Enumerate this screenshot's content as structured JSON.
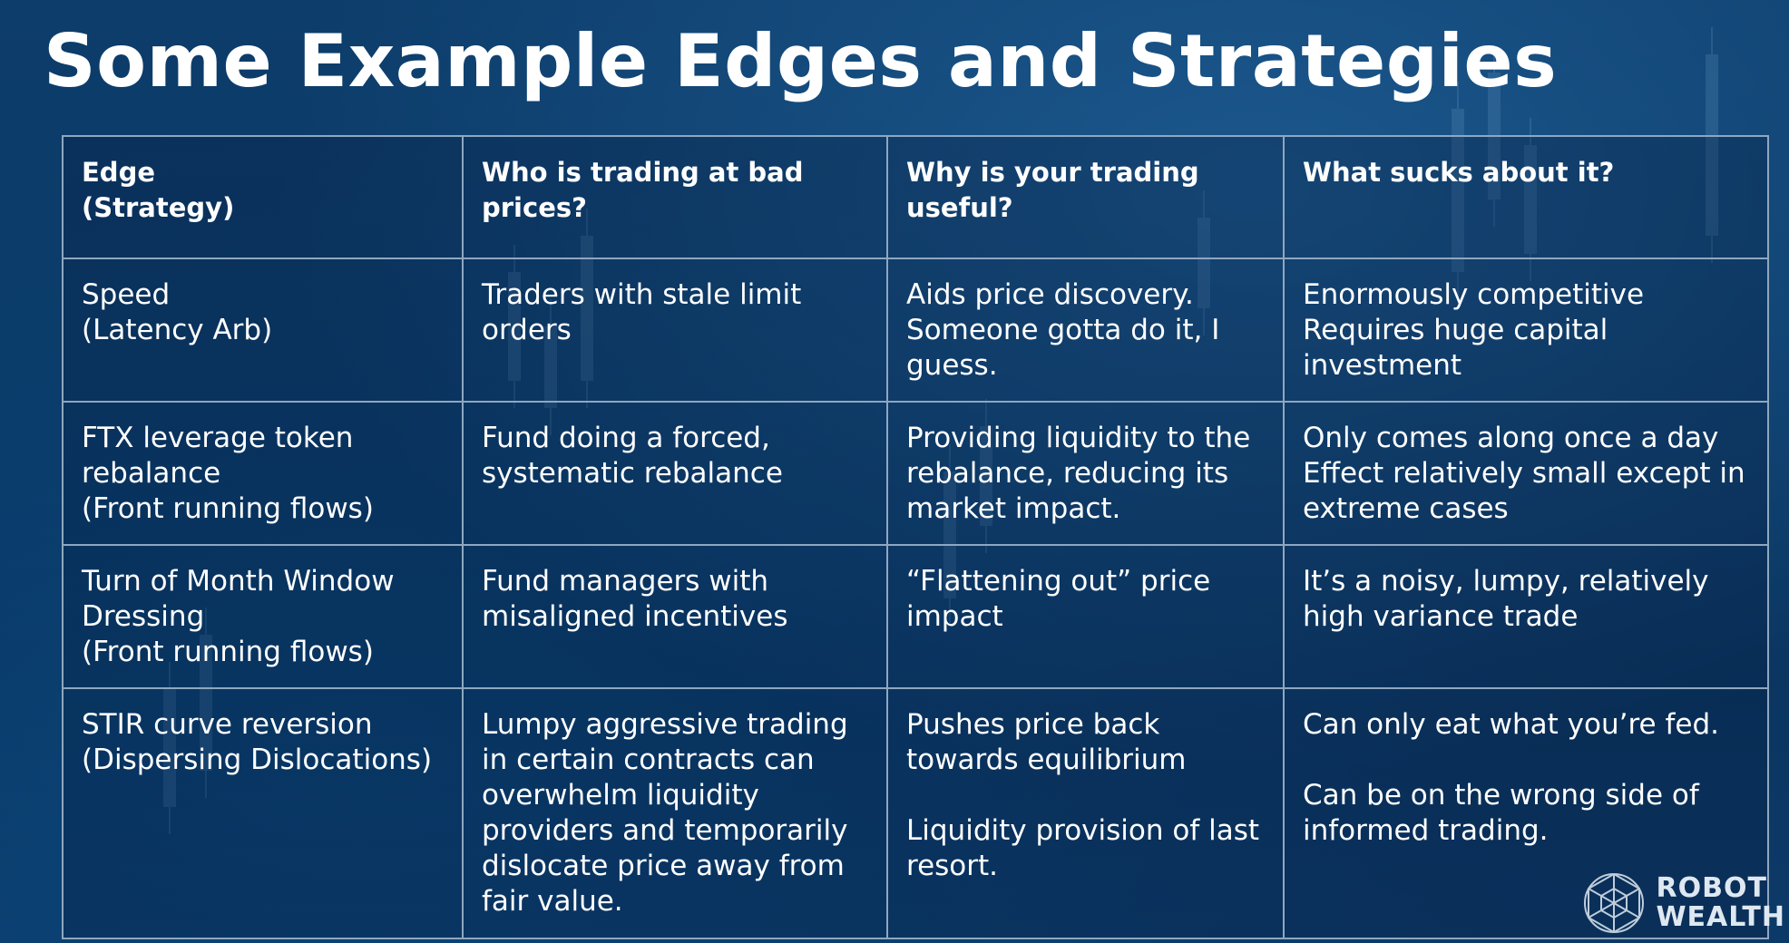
{
  "slide": {
    "title": "Some Example Edges and Strategies"
  },
  "table": {
    "headers": [
      "Edge\n(Strategy)",
      "Who is trading at bad prices?",
      "Why is your trading useful?",
      "What sucks about it?"
    ],
    "rows": [
      [
        "Speed\n(Latency Arb)",
        "Traders with stale limit orders",
        "Aids price discovery.\nSomeone gotta do it, I guess.",
        "Enormously competitive\nRequires huge capital investment"
      ],
      [
        "FTX leverage token rebalance\n(Front running flows)",
        "Fund doing a forced, systematic rebalance",
        "Providing liquidity to the rebalance, reducing its market impact.",
        "Only comes along once a day\nEffect relatively small except in extreme cases"
      ],
      [
        "Turn of Month Window Dressing\n(Front running flows)",
        "Fund managers with misaligned incentives",
        "“Flattening out” price impact",
        "It’s a noisy, lumpy, relatively high variance trade"
      ],
      [
        "STIR curve reversion\n(Dispersing Dislocations)",
        "Lumpy aggressive trading in certain contracts can overwhelm liquidity providers and temporarily dislocate price away from fair value.",
        "Pushes price back towards equilibrium\n\nLiquidity provision of last resort.",
        "Can only eat what you’re fed.\n\nCan be on the wrong side of informed trading."
      ]
    ]
  },
  "logo": {
    "line1": "ROBOT",
    "line2": "WEALTH",
    "icon": "geodesic-globe-icon"
  },
  "colors": {
    "background": "#0b3a66",
    "border": "#8fa7bf",
    "text": "#ffffff"
  }
}
